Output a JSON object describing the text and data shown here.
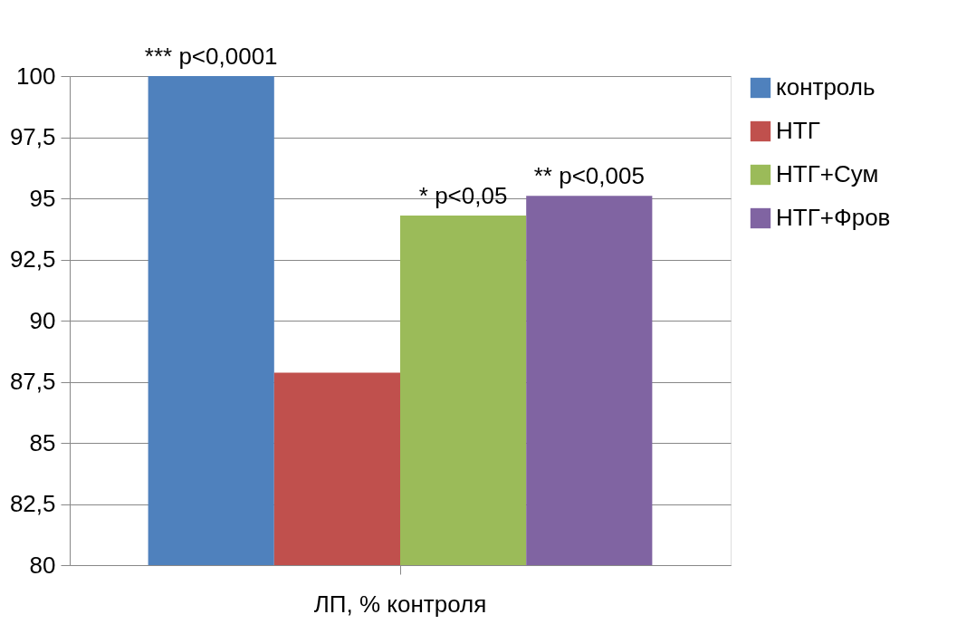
{
  "chart_data": {
    "type": "bar",
    "categories": [
      "ЛП, % контроля"
    ],
    "series": [
      {
        "name": "контроль",
        "color": "#4f81bd",
        "values": [
          100
        ]
      },
      {
        "name": "НТГ",
        "color": "#c0504d",
        "values": [
          87.87
        ]
      },
      {
        "name": "НТГ+Сум",
        "color": "#9bbb59",
        "values": [
          94.3
        ]
      },
      {
        "name": "НТГ+Фров",
        "color": "#8064a2",
        "values": [
          95.1
        ]
      }
    ],
    "ylim": [
      80,
      100
    ],
    "yticks": [
      80,
      {
        "value": 82.5,
        "label": "82,5"
      },
      85,
      {
        "value": 87.5,
        "label": "87,5"
      },
      90,
      {
        "value": 92.5,
        "label": "92,5"
      },
      95,
      {
        "value": 97.5,
        "label": "97,5"
      },
      100
    ],
    "grid": "y",
    "legend": "right",
    "annotations": [
      "*** p<0,0001",
      "* p<0,05",
      "** p<0,005"
    ]
  }
}
